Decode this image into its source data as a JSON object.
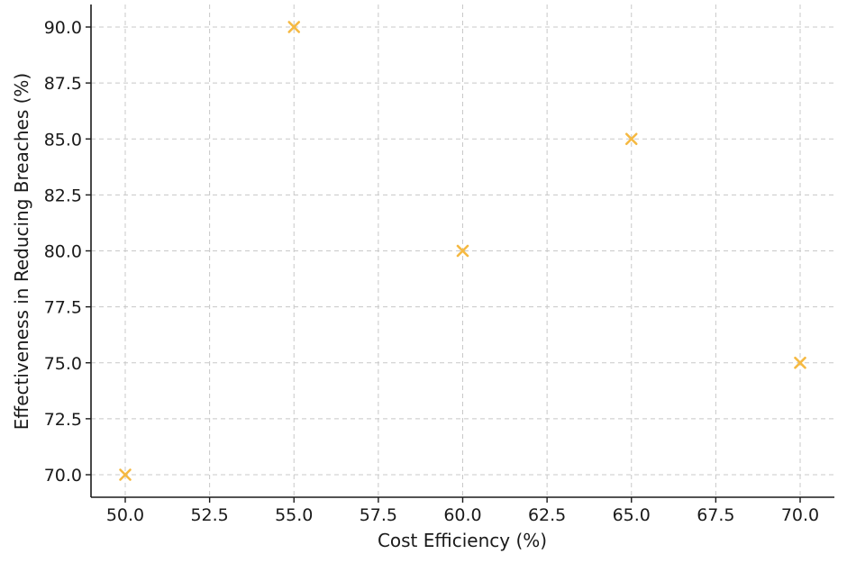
{
  "chart_data": {
    "type": "scatter",
    "xlabel": "Cost Efficiency (%)",
    "ylabel": "Effectiveness in Reducing Breaches (%)",
    "xlim": [
      49,
      71
    ],
    "ylim": [
      69.0,
      91.0
    ],
    "x_ticks": [
      "50.0",
      "52.5",
      "55.0",
      "57.5",
      "60.0",
      "62.5",
      "65.0",
      "67.5",
      "70.0"
    ],
    "y_ticks": [
      "70.0",
      "72.5",
      "75.0",
      "77.5",
      "80.0",
      "82.5",
      "85.0",
      "87.5",
      "90.0"
    ],
    "grid": true,
    "marker": "x",
    "marker_color": "#F5B942",
    "series": [
      {
        "points": [
          {
            "x": 50,
            "y": 70
          },
          {
            "x": 55,
            "y": 90
          },
          {
            "x": 60,
            "y": 80
          },
          {
            "x": 65,
            "y": 85
          },
          {
            "x": 70,
            "y": 75
          }
        ]
      }
    ]
  }
}
